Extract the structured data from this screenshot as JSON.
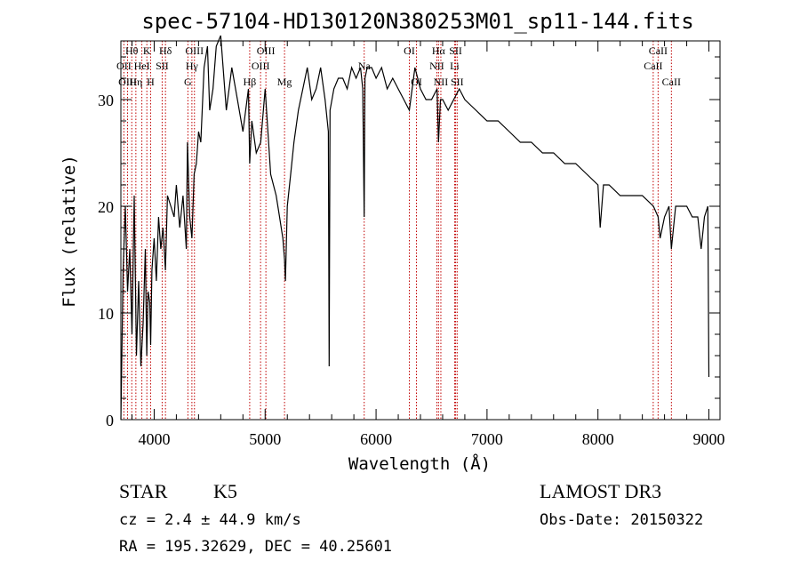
{
  "chart_data": {
    "type": "line",
    "title": "spec-57104-HD130120N380253M01_sp11-144.fits",
    "xlabel": "Wavelength (Å)",
    "ylabel": "Flux (relative)",
    "xlim": [
      3700,
      9100
    ],
    "ylim": [
      0,
      35.5
    ],
    "xticks": [
      4000,
      5000,
      6000,
      7000,
      8000,
      9000
    ],
    "yticks": [
      0,
      10,
      20,
      30
    ],
    "grid": false,
    "series": [
      {
        "x": [
          3700,
          3720,
          3740,
          3760,
          3780,
          3800,
          3820,
          3840,
          3860,
          3880,
          3900,
          3920,
          3933,
          3945,
          3960,
          3968,
          3980,
          4000,
          4020,
          4040,
          4060,
          4080,
          4101,
          4120,
          4150,
          4180,
          4200,
          4230,
          4260,
          4290,
          4300,
          4320,
          4340,
          4360,
          4380,
          4400,
          4420,
          4450,
          4480,
          4500,
          4530,
          4560,
          4600,
          4650,
          4700,
          4750,
          4800,
          4850,
          4861,
          4880,
          4920,
          4960,
          5000,
          5050,
          5100,
          5130,
          5160,
          5175,
          5183,
          5200,
          5230,
          5260,
          5300,
          5340,
          5380,
          5420,
          5460,
          5500,
          5540,
          5570,
          5577,
          5585,
          5620,
          5660,
          5700,
          5740,
          5780,
          5820,
          5860,
          5880,
          5893,
          5900,
          5920,
          5960,
          6000,
          6050,
          6100,
          6150,
          6200,
          6250,
          6300,
          6350,
          6400,
          6450,
          6500,
          6550,
          6563,
          6580,
          6600,
          6650,
          6700,
          6750,
          6800,
          6900,
          7000,
          7100,
          7200,
          7300,
          7400,
          7500,
          7600,
          7700,
          7800,
          7900,
          8000,
          8020,
          8050,
          8100,
          8200,
          8300,
          8400,
          8500,
          8542,
          8560,
          8600,
          8640,
          8662,
          8700,
          8750,
          8800,
          8850,
          8900,
          8930,
          8960,
          8990,
          9000
        ],
        "y": [
          0,
          14,
          20,
          12,
          16,
          8,
          21,
          6,
          13,
          5,
          9,
          16,
          6,
          12,
          11,
          7,
          14,
          17,
          13,
          19,
          16,
          18,
          14,
          21,
          20,
          19,
          22,
          18,
          21,
          16,
          26,
          19,
          17,
          23,
          24,
          27,
          26,
          33,
          35,
          29,
          31,
          35,
          36,
          29,
          33,
          30,
          27,
          31,
          24,
          28,
          25,
          26,
          31,
          23,
          21,
          19,
          17,
          15,
          13,
          20,
          23,
          26,
          29,
          31,
          33,
          30,
          31,
          33,
          30,
          27,
          5,
          29,
          31,
          32,
          32,
          31,
          33,
          32,
          33,
          31,
          19,
          32,
          33,
          33,
          32,
          33,
          31,
          32,
          31,
          30,
          29,
          33,
          31,
          30,
          30,
          31,
          26,
          30,
          30,
          29,
          30,
          31,
          30,
          29,
          28,
          28,
          27,
          26,
          26,
          25,
          25,
          24,
          24,
          23,
          22,
          18,
          22,
          22,
          21,
          21,
          21,
          20,
          19,
          17,
          19,
          20,
          16,
          20,
          20,
          20,
          19,
          19,
          16,
          19,
          20,
          4
        ],
        "color": "#000000"
      }
    ],
    "spectral_lines": [
      {
        "label": "Hθ",
        "wavelength": 3798,
        "row": 1
      },
      {
        "label": "OII",
        "wavelength": 3727,
        "row": 2
      },
      {
        "label": "OIII",
        "wavelength": 3760,
        "row": 3
      },
      {
        "label": "K",
        "wavelength": 3934,
        "row": 1
      },
      {
        "label": "Hη",
        "wavelength": 3835,
        "row": 3
      },
      {
        "label": "HeI",
        "wavelength": 3889,
        "row": 2
      },
      {
        "label": "H",
        "wavelength": 3968,
        "row": 3
      },
      {
        "label": "Hδ",
        "wavelength": 4102,
        "row": 1
      },
      {
        "label": "SII",
        "wavelength": 4072,
        "row": 2
      },
      {
        "label": "OIII",
        "wavelength": 4363,
        "row": 1
      },
      {
        "label": "Hγ",
        "wavelength": 4340,
        "row": 2
      },
      {
        "label": "G",
        "wavelength": 4304,
        "row": 3
      },
      {
        "label": "OIII",
        "wavelength": 5007,
        "row": 1
      },
      {
        "label": "OIII",
        "wavelength": 4959,
        "row": 2
      },
      {
        "label": "Hβ",
        "wavelength": 4861,
        "row": 3
      },
      {
        "label": "Mg",
        "wavelength": 5175,
        "row": 3
      },
      {
        "label": "Na",
        "wavelength": 5893,
        "row": 2
      },
      {
        "label": "OI",
        "wavelength": 6300,
        "row": 1
      },
      {
        "label": "OI",
        "wavelength": 6364,
        "row": 3
      },
      {
        "label": "Hα",
        "wavelength": 6563,
        "row": 1
      },
      {
        "label": "SII",
        "wavelength": 6717,
        "row": 1
      },
      {
        "label": "NII",
        "wavelength": 6548,
        "row": 2
      },
      {
        "label": "Li",
        "wavelength": 6708,
        "row": 2
      },
      {
        "label": "NII",
        "wavelength": 6584,
        "row": 3
      },
      {
        "label": "SII",
        "wavelength": 6731,
        "row": 3
      },
      {
        "label": "CaII",
        "wavelength": 8542,
        "row": 1
      },
      {
        "label": "CaII",
        "wavelength": 8498,
        "row": 2
      },
      {
        "label": "CaII",
        "wavelength": 8662,
        "row": 3
      }
    ],
    "line_color": "#c00000"
  },
  "info": {
    "class_label": "STAR",
    "subclass": "K5",
    "survey": "LAMOST DR3",
    "cz": "cz = 2.4 ± 44.9 km/s",
    "obs_date": "Obs-Date: 20150322",
    "coords": "RA = 195.32629, DEC =  40.25601"
  }
}
